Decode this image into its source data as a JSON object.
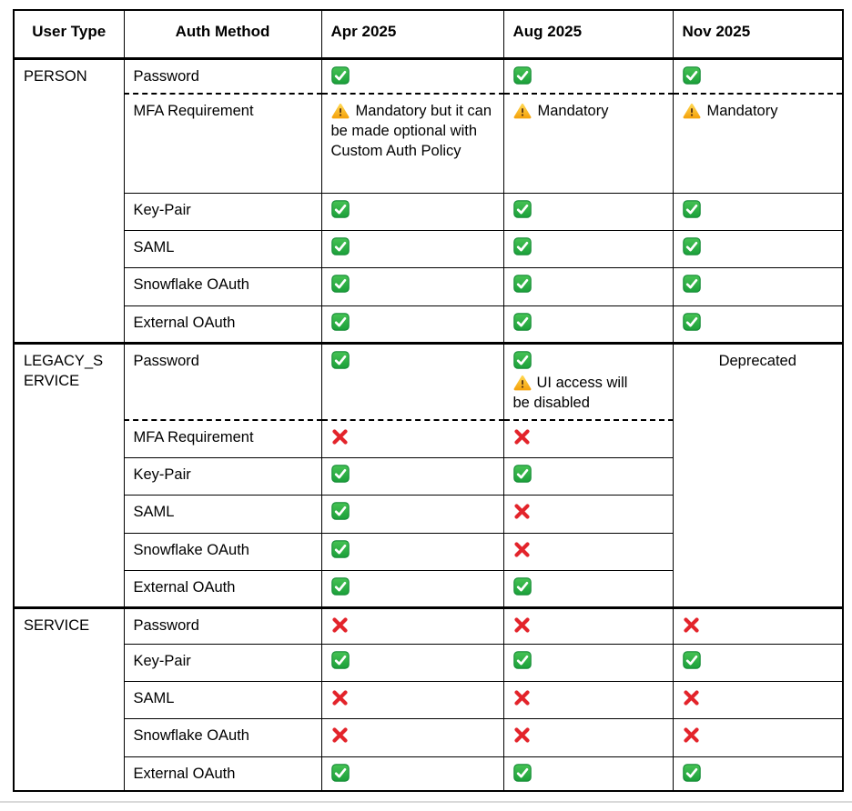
{
  "table": {
    "headers": [
      "User Type",
      "Auth Method",
      "Apr 2025",
      "Aug 2025",
      "Nov 2025"
    ],
    "sections": [
      {
        "user_type": "PERSON",
        "rows": [
          {
            "method": "Password",
            "dashed_bottom": true,
            "cells": [
              "check",
              "check",
              "check"
            ]
          },
          {
            "method": "MFA Requirement",
            "cells": [
              {
                "icon": "warn",
                "text": "Mandatory but it can be made optional with Custom Auth Policy"
              },
              {
                "icon": "warn",
                "text": "Mandatory"
              },
              {
                "icon": "warn",
                "text": "Mandatory"
              }
            ]
          },
          {
            "method": "Key-Pair",
            "cells": [
              "check",
              "check",
              "check"
            ]
          },
          {
            "method": "SAML",
            "cells": [
              "check",
              "check",
              "check"
            ]
          },
          {
            "method": "Snowflake OAuth",
            "cells": [
              "check",
              "check",
              "check"
            ]
          },
          {
            "method": "External OAuth",
            "cells": [
              "check",
              "check",
              "check"
            ]
          }
        ]
      },
      {
        "user_type": "LEGACY_SERVICE",
        "nov_cell": {
          "text": "Deprecated"
        },
        "rows": [
          {
            "method": "Password",
            "dashed_bottom": true,
            "cells": [
              "check",
              {
                "icon": "check",
                "note": {
                  "icon": "warn",
                  "text": "UI access will be disabled"
                }
              }
            ]
          },
          {
            "method": "MFA Requirement",
            "cells": [
              "cross",
              "cross"
            ]
          },
          {
            "method": "Key-Pair",
            "cells": [
              "check",
              "check"
            ]
          },
          {
            "method": "SAML",
            "cells": [
              "check",
              "cross"
            ]
          },
          {
            "method": "Snowflake OAuth",
            "cells": [
              "check",
              "cross"
            ]
          },
          {
            "method": "External OAuth",
            "cells": [
              "check",
              "check"
            ]
          }
        ]
      },
      {
        "user_type": "SERVICE",
        "rows": [
          {
            "method": "Password",
            "cells": [
              "cross",
              "cross",
              "cross"
            ]
          },
          {
            "method": "Key-Pair",
            "cells": [
              "check",
              "check",
              "check"
            ]
          },
          {
            "method": "SAML",
            "cells": [
              "cross",
              "cross",
              "cross"
            ]
          },
          {
            "method": "Snowflake OAuth",
            "cells": [
              "cross",
              "cross",
              "cross"
            ]
          },
          {
            "method": "External OAuth",
            "cells": [
              "check",
              "check",
              "check"
            ]
          }
        ]
      }
    ]
  },
  "icons": {
    "check": "check-icon",
    "cross": "cross-icon",
    "warn": "warning-icon"
  },
  "colors": {
    "check_green": "#1ba03a",
    "check_green_light": "#46c254",
    "check_border": "#128a34",
    "cross_red": "#e3242b",
    "warn_yellow_top": "#ffd44d",
    "warn_yellow_bottom": "#f5a40f",
    "warn_glyph": "#5b3714",
    "border_black": "#000000",
    "divider_gray": "#d9d9d9"
  }
}
